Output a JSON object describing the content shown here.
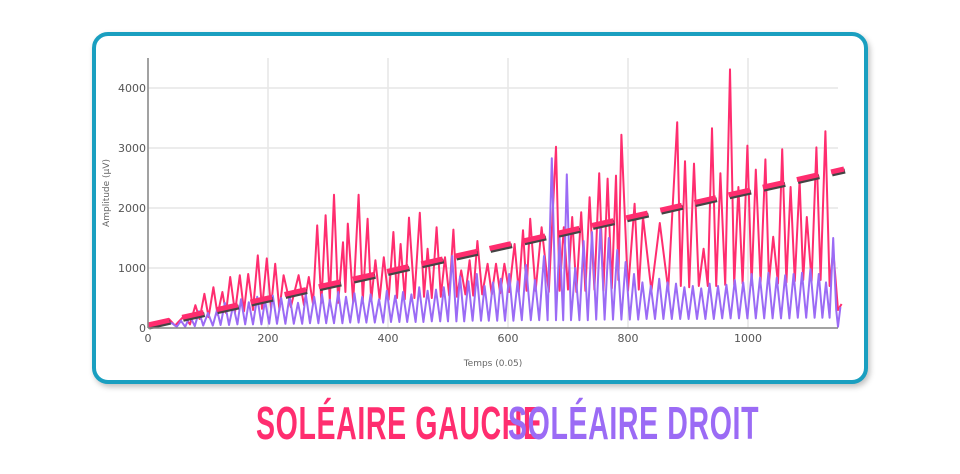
{
  "chart_data": {
    "type": "line",
    "xlabel": "Temps (0.05)",
    "ylabel": "Amplitude (µV)",
    "xlim": [
      0,
      1150
    ],
    "ylim": [
      0,
      4500
    ],
    "xticks": [
      0,
      200,
      400,
      600,
      800,
      1000
    ],
    "yticks": [
      0,
      1000,
      2000,
      3000,
      4000
    ],
    "grid": true,
    "legend_position": "bottom",
    "series": [
      {
        "name": "SOLÉAIRE GAUCHE",
        "color": "#ff2d6f",
        "points": [
          [
            0,
            30
          ],
          [
            20,
            60
          ],
          [
            35,
            150
          ],
          [
            45,
            40
          ],
          [
            60,
            200
          ],
          [
            70,
            60
          ],
          [
            79,
            380
          ],
          [
            86,
            150
          ],
          [
            94,
            570
          ],
          [
            101,
            180
          ],
          [
            109,
            680
          ],
          [
            116,
            220
          ],
          [
            124,
            600
          ],
          [
            130,
            250
          ],
          [
            137,
            850
          ],
          [
            145,
            260
          ],
          [
            153,
            880
          ],
          [
            160,
            280
          ],
          [
            167,
            900
          ],
          [
            175,
            300
          ],
          [
            183,
            1210
          ],
          [
            190,
            320
          ],
          [
            198,
            1160
          ],
          [
            205,
            330
          ],
          [
            212,
            1070
          ],
          [
            219,
            300
          ],
          [
            226,
            880
          ],
          [
            238,
            350
          ],
          [
            251,
            880
          ],
          [
            260,
            380
          ],
          [
            268,
            850
          ],
          [
            275,
            400
          ],
          [
            282,
            1710
          ],
          [
            289,
            420
          ],
          [
            296,
            1880
          ],
          [
            303,
            450
          ],
          [
            310,
            2220
          ],
          [
            317,
            420
          ],
          [
            325,
            1430
          ],
          [
            329,
            600
          ],
          [
            333,
            1740
          ],
          [
            342,
            430
          ],
          [
            351,
            2220
          ],
          [
            358,
            460
          ],
          [
            366,
            1820
          ],
          [
            372,
            450
          ],
          [
            379,
            1130
          ],
          [
            386,
            480
          ],
          [
            393,
            1180
          ],
          [
            401,
            470
          ],
          [
            409,
            1600
          ],
          [
            415,
            500
          ],
          [
            421,
            1400
          ],
          [
            428,
            480
          ],
          [
            435,
            1840
          ],
          [
            444,
            500
          ],
          [
            453,
            1920
          ],
          [
            460,
            520
          ],
          [
            466,
            1320
          ],
          [
            473,
            500
          ],
          [
            481,
            1680
          ],
          [
            488,
            520
          ],
          [
            495,
            1180
          ],
          [
            502,
            540
          ],
          [
            509,
            1640
          ],
          [
            515,
            520
          ],
          [
            522,
            960
          ],
          [
            529,
            560
          ],
          [
            536,
            1130
          ],
          [
            542,
            540
          ],
          [
            549,
            1450
          ],
          [
            557,
            560
          ],
          [
            566,
            1070
          ],
          [
            573,
            560
          ],
          [
            580,
            1070
          ],
          [
            587,
            580
          ],
          [
            594,
            1070
          ],
          [
            602,
            600
          ],
          [
            611,
            1400
          ],
          [
            618,
            600
          ],
          [
            625,
            1630
          ],
          [
            631,
            620
          ],
          [
            637,
            1820
          ],
          [
            646,
            620
          ],
          [
            656,
            1680
          ],
          [
            668,
            600
          ],
          [
            680,
            3020
          ],
          [
            686,
            620
          ],
          [
            693,
            1680
          ],
          [
            700,
            640
          ],
          [
            707,
            1850
          ],
          [
            714,
            600
          ],
          [
            722,
            1930
          ],
          [
            729,
            620
          ],
          [
            736,
            2180
          ],
          [
            744,
            640
          ],
          [
            752,
            2580
          ],
          [
            759,
            620
          ],
          [
            766,
            2490
          ],
          [
            773,
            660
          ],
          [
            780,
            2540
          ],
          [
            784,
            800
          ],
          [
            789,
            3220
          ],
          [
            800,
            620
          ],
          [
            811,
            2070
          ],
          [
            818,
            640
          ],
          [
            825,
            1850
          ],
          [
            839,
            620
          ],
          [
            853,
            1750
          ],
          [
            867,
            640
          ],
          [
            882,
            3430
          ],
          [
            888,
            700
          ],
          [
            895,
            2780
          ],
          [
            902,
            680
          ],
          [
            910,
            2740
          ],
          [
            918,
            700
          ],
          [
            926,
            1320
          ],
          [
            933,
            700
          ],
          [
            940,
            3330
          ],
          [
            947,
            700
          ],
          [
            954,
            2580
          ],
          [
            962,
            720
          ],
          [
            970,
            4310
          ],
          [
            977,
            720
          ],
          [
            984,
            2350
          ],
          [
            991,
            740
          ],
          [
            999,
            3040
          ],
          [
            1006,
            720
          ],
          [
            1013,
            2640
          ],
          [
            1021,
            760
          ],
          [
            1029,
            2810
          ],
          [
            1035,
            760
          ],
          [
            1042,
            1520
          ],
          [
            1050,
            740
          ],
          [
            1057,
            2980
          ],
          [
            1064,
            760
          ],
          [
            1071,
            2350
          ],
          [
            1078,
            780
          ],
          [
            1086,
            2460
          ],
          [
            1092,
            800
          ],
          [
            1098,
            1850
          ],
          [
            1106,
            780
          ],
          [
            1114,
            3010
          ],
          [
            1121,
            800
          ],
          [
            1129,
            3280
          ],
          [
            1136,
            700
          ],
          [
            1142,
            1300
          ],
          [
            1150,
            300
          ],
          [
            1156,
            400
          ]
        ]
      },
      {
        "name": "SOLÉAIRE DROIT",
        "color": "#9b6bf5",
        "points": [
          [
            0,
            10
          ],
          [
            40,
            80
          ],
          [
            48,
            20
          ],
          [
            55,
            120
          ],
          [
            62,
            20
          ],
          [
            70,
            200
          ],
          [
            78,
            30
          ],
          [
            85,
            280
          ],
          [
            92,
            40
          ],
          [
            100,
            250
          ],
          [
            108,
            40
          ],
          [
            115,
            300
          ],
          [
            121,
            50
          ],
          [
            128,
            420
          ],
          [
            135,
            50
          ],
          [
            142,
            380
          ],
          [
            149,
            60
          ],
          [
            155,
            480
          ],
          [
            162,
            60
          ],
          [
            168,
            430
          ],
          [
            175,
            60
          ],
          [
            182,
            520
          ],
          [
            189,
            60
          ],
          [
            195,
            460
          ],
          [
            202,
            70
          ],
          [
            208,
            540
          ],
          [
            215,
            70
          ],
          [
            222,
            500
          ],
          [
            229,
            70
          ],
          [
            236,
            540
          ],
          [
            243,
            70
          ],
          [
            250,
            420
          ],
          [
            257,
            70
          ],
          [
            263,
            560
          ],
          [
            270,
            80
          ],
          [
            277,
            520
          ],
          [
            284,
            80
          ],
          [
            290,
            560
          ],
          [
            297,
            80
          ],
          [
            303,
            470
          ],
          [
            310,
            80
          ],
          [
            317,
            600
          ],
          [
            324,
            80
          ],
          [
            330,
            520
          ],
          [
            337,
            90
          ],
          [
            344,
            580
          ],
          [
            351,
            90
          ],
          [
            357,
            520
          ],
          [
            364,
            90
          ],
          [
            371,
            560
          ],
          [
            378,
            90
          ],
          [
            385,
            480
          ],
          [
            392,
            90
          ],
          [
            398,
            620
          ],
          [
            405,
            100
          ],
          [
            412,
            540
          ],
          [
            419,
            100
          ],
          [
            425,
            600
          ],
          [
            432,
            100
          ],
          [
            439,
            560
          ],
          [
            446,
            100
          ],
          [
            452,
            680
          ],
          [
            459,
            100
          ],
          [
            466,
            620
          ],
          [
            473,
            110
          ],
          [
            480,
            640
          ],
          [
            487,
            110
          ],
          [
            493,
            680
          ],
          [
            500,
            110
          ],
          [
            507,
            1200
          ],
          [
            514,
            110
          ],
          [
            520,
            860
          ],
          [
            527,
            110
          ],
          [
            534,
            780
          ],
          [
            541,
            120
          ],
          [
            548,
            900
          ],
          [
            555,
            120
          ],
          [
            561,
            700
          ],
          [
            568,
            120
          ],
          [
            575,
            760
          ],
          [
            582,
            120
          ],
          [
            588,
            820
          ],
          [
            595,
            120
          ],
          [
            602,
            900
          ],
          [
            609,
            120
          ],
          [
            616,
            780
          ],
          [
            623,
            130
          ],
          [
            630,
            1050
          ],
          [
            638,
            130
          ],
          [
            645,
            800
          ],
          [
            652,
            130
          ],
          [
            660,
            1200
          ],
          [
            666,
            130
          ],
          [
            673,
            2830
          ],
          [
            680,
            130
          ],
          [
            686,
            1500
          ],
          [
            692,
            130
          ],
          [
            698,
            2560
          ],
          [
            705,
            130
          ],
          [
            712,
            1000
          ],
          [
            719,
            130
          ],
          [
            726,
            1450
          ],
          [
            733,
            130
          ],
          [
            740,
            1600
          ],
          [
            747,
            140
          ],
          [
            754,
            1700
          ],
          [
            761,
            140
          ],
          [
            768,
            1500
          ],
          [
            775,
            140
          ],
          [
            782,
            1300
          ],
          [
            789,
            140
          ],
          [
            796,
            1100
          ],
          [
            803,
            140
          ],
          [
            810,
            900
          ],
          [
            817,
            140
          ],
          [
            824,
            760
          ],
          [
            831,
            150
          ],
          [
            838,
            700
          ],
          [
            845,
            150
          ],
          [
            852,
            820
          ],
          [
            859,
            150
          ],
          [
            866,
            760
          ],
          [
            873,
            150
          ],
          [
            880,
            740
          ],
          [
            887,
            150
          ],
          [
            894,
            680
          ],
          [
            901,
            150
          ],
          [
            908,
            700
          ],
          [
            915,
            150
          ],
          [
            922,
            660
          ],
          [
            929,
            150
          ],
          [
            936,
            740
          ],
          [
            943,
            150
          ],
          [
            950,
            700
          ],
          [
            957,
            160
          ],
          [
            964,
            720
          ],
          [
            971,
            160
          ],
          [
            978,
            800
          ],
          [
            985,
            160
          ],
          [
            992,
            760
          ],
          [
            999,
            160
          ],
          [
            1006,
            900
          ],
          [
            1013,
            160
          ],
          [
            1020,
            840
          ],
          [
            1027,
            160
          ],
          [
            1034,
            920
          ],
          [
            1041,
            160
          ],
          [
            1048,
            840
          ],
          [
            1055,
            160
          ],
          [
            1062,
            880
          ],
          [
            1069,
            160
          ],
          [
            1076,
            900
          ],
          [
            1083,
            170
          ],
          [
            1090,
            920
          ],
          [
            1097,
            170
          ],
          [
            1104,
            980
          ],
          [
            1111,
            170
          ],
          [
            1118,
            900
          ],
          [
            1124,
            170
          ],
          [
            1130,
            760
          ],
          [
            1136,
            170
          ],
          [
            1142,
            1500
          ],
          [
            1147,
            300
          ],
          [
            1150,
            20
          ],
          [
            1154,
            350
          ]
        ]
      }
    ],
    "trendline": {
      "color": "#ff2d6f",
      "style": "dashed",
      "points": [
        [
          0,
          50
        ],
        [
          1160,
          2650
        ]
      ]
    }
  },
  "legend": {
    "left": "SOLÉAIRE GAUCHE",
    "right": "SOLÉAIRE DROIT"
  }
}
